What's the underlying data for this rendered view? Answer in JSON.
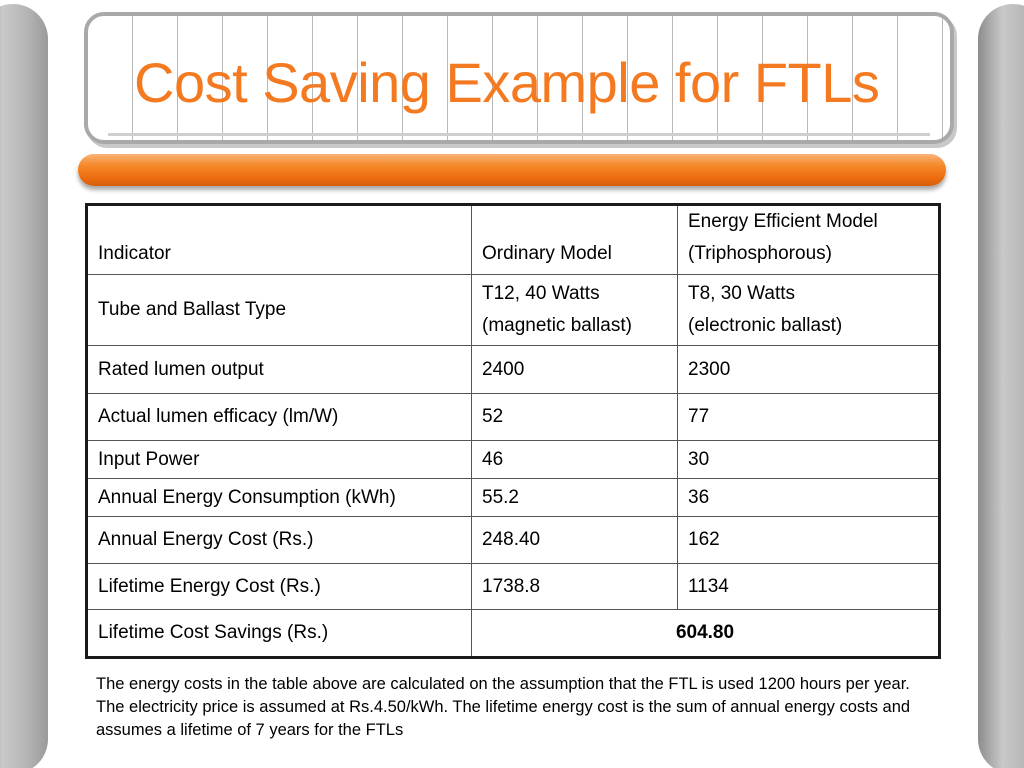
{
  "title": "Cost Saving Example for FTLs",
  "colors": {
    "title": "#f47a21",
    "accent_bar": "#ee6f10",
    "side_bars": "#b5b5b5"
  },
  "table": {
    "header": {
      "indicator": "Indicator",
      "ordinary": "Ordinary Model",
      "efficient_line1": "Energy Efficient Model",
      "efficient_line2": "(Triphosphorous)"
    },
    "rows": [
      {
        "indicator": "Tube and Ballast Type",
        "ordinary_line1": "T12, 40 Watts",
        "ordinary_line2": "(magnetic ballast)",
        "efficient_line1": "T8, 30 Watts",
        "efficient_line2": "(electronic ballast)"
      },
      {
        "indicator": "Rated lumen output",
        "ordinary": "2400",
        "efficient": "2300"
      },
      {
        "indicator": "Actual lumen efficacy (lm/W)",
        "ordinary": "52",
        "efficient": "77"
      },
      {
        "indicator": "Input Power",
        "ordinary": "46",
        "efficient": "30"
      },
      {
        "indicator": "Annual Energy Consumption (kWh)",
        "ordinary": "55.2",
        "efficient": "36"
      },
      {
        "indicator": "Annual Energy Cost (Rs.)",
        "ordinary": "248.40",
        "efficient": "162"
      },
      {
        "indicator": "Lifetime Energy Cost (Rs.)",
        "ordinary": "1738.8",
        "efficient": "1134"
      },
      {
        "indicator": "Lifetime Cost Savings (Rs.)",
        "savings": "604.80"
      }
    ]
  },
  "footnote": "The energy costs in the table above are calculated on the assumption that the FTL is used 1200 hours per year. The electricity price is assumed at Rs.4.50/kWh. The lifetime energy cost is the sum of annual energy costs and assumes a lifetime of 7 years for the FTLs"
}
